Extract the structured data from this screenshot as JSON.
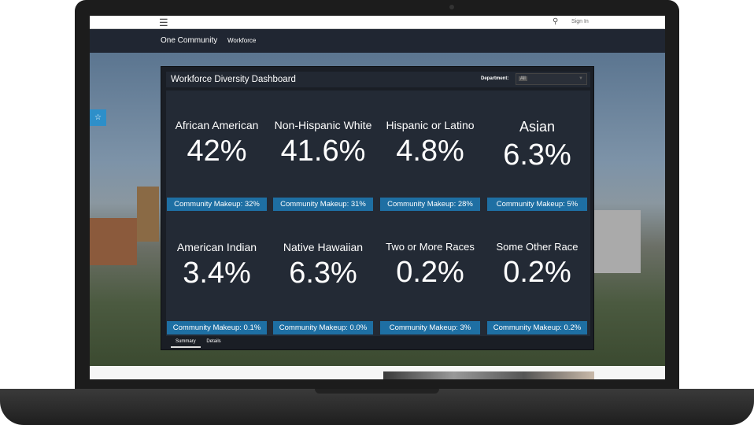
{
  "topbar": {
    "menu_icon": "hamburger-icon",
    "search_icon": "search-icon",
    "sign_in": "Sign In"
  },
  "nav": {
    "brand": "One Community",
    "link": "Workforce"
  },
  "favorite_icon": "star-icon",
  "dashboard": {
    "title": "Workforce Diversity Dashboard",
    "department_label": "Department:",
    "department_value": "All",
    "tiles": [
      {
        "label": "African American",
        "value": "42%",
        "makeup": "Community Makeup: 32%"
      },
      {
        "label": "Non-Hispanic White",
        "value": "41.6%",
        "makeup": "Community Makeup: 31%"
      },
      {
        "label": "Hispanic or Latino",
        "value": "4.8%",
        "makeup": "Community Makeup: 28%"
      },
      {
        "label": "Asian",
        "value": "6.3%",
        "makeup": "Community Makeup: 5%"
      },
      {
        "label": "American Indian",
        "value": "3.4%",
        "makeup": "Community Makeup: 0.1%"
      },
      {
        "label": "Native Hawaiian",
        "value": "6.3%",
        "makeup": "Community Makeup: 0.0%"
      },
      {
        "label": "Two or More Races",
        "value": "0.2%",
        "makeup": "Community Makeup: 3%"
      },
      {
        "label": "Some Other Race",
        "value": "0.2%",
        "makeup": "Community Makeup: 0.2%"
      }
    ],
    "tabs": [
      "Summary",
      "Details"
    ]
  },
  "colors": {
    "accent": "#1e6fa3",
    "panel": "#232a35",
    "nav": "#202632"
  }
}
